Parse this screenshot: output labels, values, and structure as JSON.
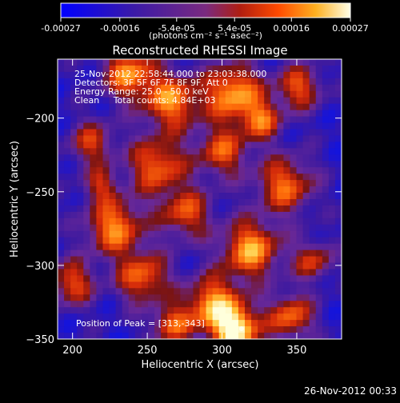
{
  "chart_data": {
    "type": "heatmap",
    "title": "Reconstructed RHESSI Image",
    "xlabel": "Heliocentric X (arcsec)",
    "ylabel": "Heliocentric Y (arcsec)",
    "xlim": [
      190,
      380
    ],
    "ylim": [
      -350,
      -160
    ],
    "x_ticks": [
      200,
      250,
      300,
      350
    ],
    "y_ticks": [
      -200,
      -250,
      -300,
      -350
    ],
    "colorbar": {
      "range": [
        -0.00027,
        0.00027
      ],
      "ticks": [
        -0.00027,
        -0.00016,
        -5.4e-05,
        5.4e-05,
        0.00016,
        0.00027
      ],
      "tick_labels": [
        "-0.00027",
        "-0.00016",
        "-5.4e-05",
        "5.4e-05",
        "0.00016",
        "0.00027"
      ],
      "units_label": "(photons cm⁻² s⁻¹ asec⁻²)",
      "colors": [
        "#1010ff",
        "#3a18a8",
        "#6b2aa0",
        "#8a2020",
        "#e04010",
        "#ff8a10",
        "#ffd040",
        "#ffffe0"
      ]
    },
    "annotations": {
      "time_range": "25-Nov-2012 22:58:44.000 to 23:03:38.000",
      "detectors": "Detectors: 3F 5F 6F 7F 8F 9F, Att 0",
      "energy_range": "Energy Range: 25.0 - 50.0 keV",
      "clean_counts": "Clean     Total counts: 4.84E+03",
      "peak": "Position of Peak = [313,-343]"
    },
    "peak_position": [
      313,
      -343
    ]
  },
  "footer": {
    "timestamp": "26-Nov-2012 00:33"
  }
}
